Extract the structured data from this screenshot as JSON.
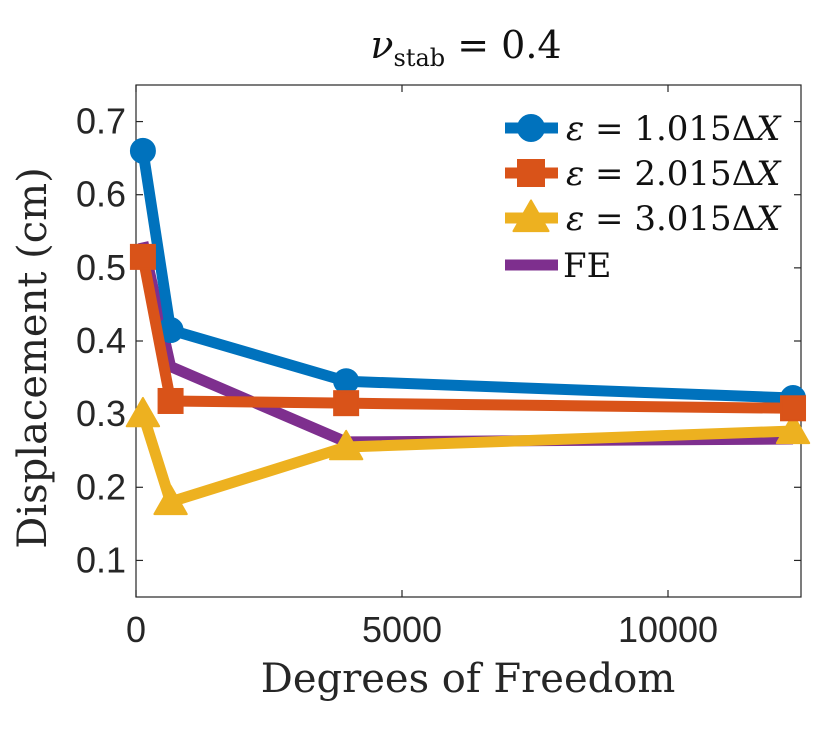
{
  "chart_data": {
    "type": "line",
    "title": "ν_stab = 0.4",
    "title_parts": {
      "nu": "ν",
      "sub": "stab",
      "rest": " = 0.4"
    },
    "xlabel": "Degrees of Freedom",
    "ylabel": "Displacement (cm)",
    "xlim": [
      0,
      12500
    ],
    "ylim": [
      0.05,
      0.75
    ],
    "xticks": [
      0,
      5000,
      10000
    ],
    "xtick_labels": [
      "0",
      "5000",
      "10000"
    ],
    "yticks": [
      0.1,
      0.2,
      0.3,
      0.4,
      0.5,
      0.6,
      0.7
    ],
    "ytick_labels": [
      "0.1",
      "0.2",
      "0.3",
      "0.4",
      "0.5",
      "0.6",
      "0.7"
    ],
    "grid": false,
    "legend_position": "top-right",
    "series": [
      {
        "name": "ε = 1.015ΔX",
        "label_parts": {
          "eps": "ε",
          "eq": " = 1.015Δ",
          "var": "X"
        },
        "marker": "circle",
        "color": "#0072BD",
        "x": [
          130,
          650,
          3950,
          12350
        ],
        "y": [
          0.66,
          0.415,
          0.345,
          0.322
        ]
      },
      {
        "name": "ε = 2.015ΔX",
        "label_parts": {
          "eps": "ε",
          "eq": " = 2.015Δ",
          "var": "X"
        },
        "marker": "square",
        "color": "#D95319",
        "x": [
          130,
          650,
          3950,
          12350
        ],
        "y": [
          0.515,
          0.318,
          0.315,
          0.308
        ]
      },
      {
        "name": "ε = 3.015ΔX",
        "label_parts": {
          "eps": "ε",
          "eq": " = 3.015Δ",
          "var": "X"
        },
        "marker": "triangle",
        "color": "#EDB120",
        "x": [
          130,
          650,
          3950,
          12350
        ],
        "y": [
          0.3,
          0.18,
          0.255,
          0.277
        ]
      },
      {
        "name": "FE",
        "label_parts": {
          "eps": "",
          "eq": "FE",
          "var": ""
        },
        "marker": "none",
        "color": "#7E2F8E",
        "x": [
          130,
          650,
          3950,
          12350
        ],
        "y": [
          0.535,
          0.365,
          0.262,
          0.266
        ]
      }
    ]
  }
}
